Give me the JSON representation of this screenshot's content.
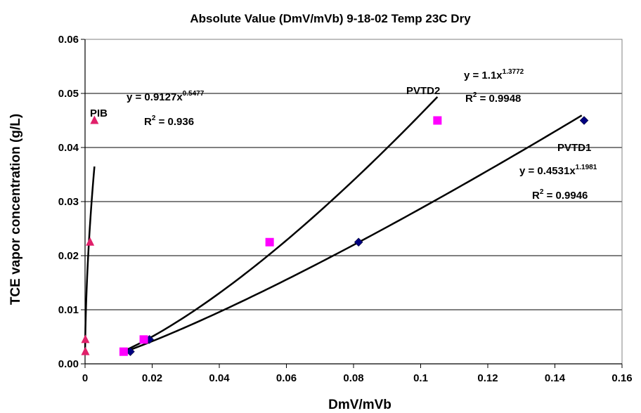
{
  "chart_data": {
    "type": "scatter",
    "title": "Absolute Value (DmV/mVb) 9-18-02 Temp 23C Dry",
    "xlabel": "DmV/mVb",
    "ylabel": "TCE vapor concentration (g/L)",
    "xlim": [
      0,
      0.16
    ],
    "ylim": [
      0,
      0.06
    ],
    "x_ticks": [
      "0",
      "0.02",
      "0.04",
      "0.06",
      "0.08",
      "0.1",
      "0.12",
      "0.14",
      "0.16"
    ],
    "y_ticks": [
      "0.00",
      "0.01",
      "0.02",
      "0.03",
      "0.04",
      "0.05",
      "0.06"
    ],
    "x_tick_values": [
      0,
      0.02,
      0.04,
      0.06,
      0.08,
      0.1,
      0.12,
      0.14,
      0.16
    ],
    "y_tick_values": [
      0,
      0.01,
      0.02,
      0.03,
      0.04,
      0.05,
      0.06
    ],
    "grid": true,
    "legend": "none",
    "series": [
      {
        "name": "PVTD1",
        "marker": "diamond",
        "color": "#000080",
        "points": [
          [
            0.0135,
            0.00225
          ],
          [
            0.0192,
            0.0045
          ],
          [
            0.0815,
            0.0225
          ],
          [
            0.1487,
            0.045
          ]
        ],
        "trend": {
          "a": 0.4531,
          "b": 1.1981,
          "x_range": [
            0.0125,
            0.148
          ]
        },
        "label": "PVTD1",
        "equation": {
          "prefix": "y = 0.4531x",
          "exponent": "1.1981"
        },
        "r2": {
          "prefix": "R",
          "power": "2",
          "value": " = 0.9946"
        }
      },
      {
        "name": "PVTD2",
        "marker": "square",
        "color": "#FF00FF",
        "points": [
          [
            0.0115,
            0.00225
          ],
          [
            0.0175,
            0.0045
          ],
          [
            0.055,
            0.0225
          ],
          [
            0.105,
            0.045
          ]
        ],
        "trend": {
          "a": 1.1,
          "b": 1.3772,
          "x_range": [
            0.0115,
            0.105
          ]
        },
        "label": "PVTD2",
        "equation": {
          "prefix": "y = 1.1x",
          "exponent": "1.3772"
        },
        "r2": {
          "prefix": "R",
          "power": "2",
          "value": " = 0.9948"
        }
      },
      {
        "name": "PIB",
        "marker": "triangle",
        "color": "#E0206A",
        "points": [
          [
            0.0001,
            0.00225
          ],
          [
            0.0001,
            0.0045
          ],
          [
            0.0015,
            0.0225
          ],
          [
            0.0028,
            0.045
          ]
        ],
        "trend": {
          "a": 0.9127,
          "b": 0.5477,
          "x_range": [
            2e-05,
            0.0028
          ]
        },
        "label": "PIB",
        "equation": {
          "prefix": "y = 0.9127x",
          "exponent": "0.5477"
        },
        "r2": {
          "prefix": "R",
          "power": "2",
          "value": " = 0.936"
        }
      }
    ]
  }
}
